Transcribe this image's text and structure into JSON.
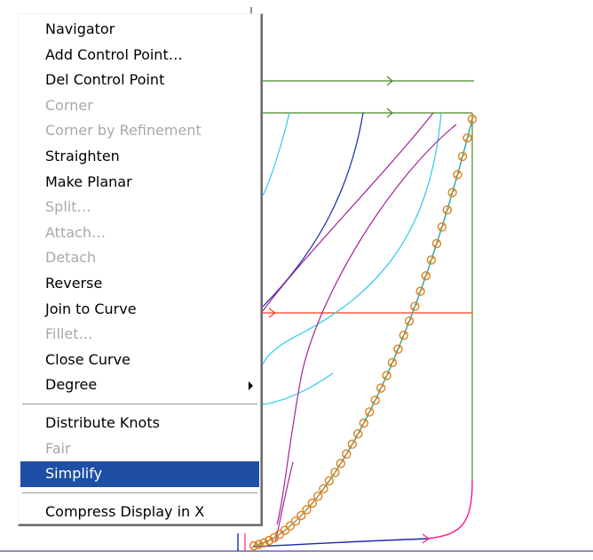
{
  "colors": {
    "background": "#ffffff",
    "highlight": "#1e4fa4",
    "disabled_text": "#a8a8a8",
    "green_curve": "#4b8a23",
    "red_curve": "#ff3b1a",
    "cyan_curve": "#2bc8f0",
    "purple_curve": "#a0249a",
    "blue_curve": "#1a2aa8",
    "orange_points": "#e0801c",
    "teal_curve": "#20a8a0",
    "pink_curve": "#ff1a8a",
    "axis_line": "#1c1c6c"
  },
  "context_menu": {
    "items": [
      {
        "label": "Navigator",
        "enabled": true
      },
      {
        "label": "Add Control Point…",
        "enabled": true
      },
      {
        "label": "Del Control Point",
        "enabled": true
      },
      {
        "label": "Corner",
        "enabled": false
      },
      {
        "label": "Corner by Refinement",
        "enabled": false
      },
      {
        "label": "Straighten",
        "enabled": true
      },
      {
        "label": "Make Planar",
        "enabled": true
      },
      {
        "label": "Split…",
        "enabled": false
      },
      {
        "label": "Attach…",
        "enabled": false
      },
      {
        "label": "Detach",
        "enabled": false
      },
      {
        "label": "Reverse",
        "enabled": true
      },
      {
        "label": "Join to Curve",
        "enabled": true
      },
      {
        "label": "Fillet…",
        "enabled": false
      },
      {
        "label": "Close Curve",
        "enabled": true
      },
      {
        "label": "Degree",
        "enabled": true,
        "submenu": true
      },
      {
        "separator": true
      },
      {
        "label": "Distribute Knots",
        "enabled": true
      },
      {
        "label": "Fair",
        "enabled": false
      },
      {
        "label": "Simplify",
        "enabled": true,
        "highlighted": true
      },
      {
        "separator": true
      },
      {
        "label": "Compress Display in X",
        "enabled": true
      }
    ]
  }
}
